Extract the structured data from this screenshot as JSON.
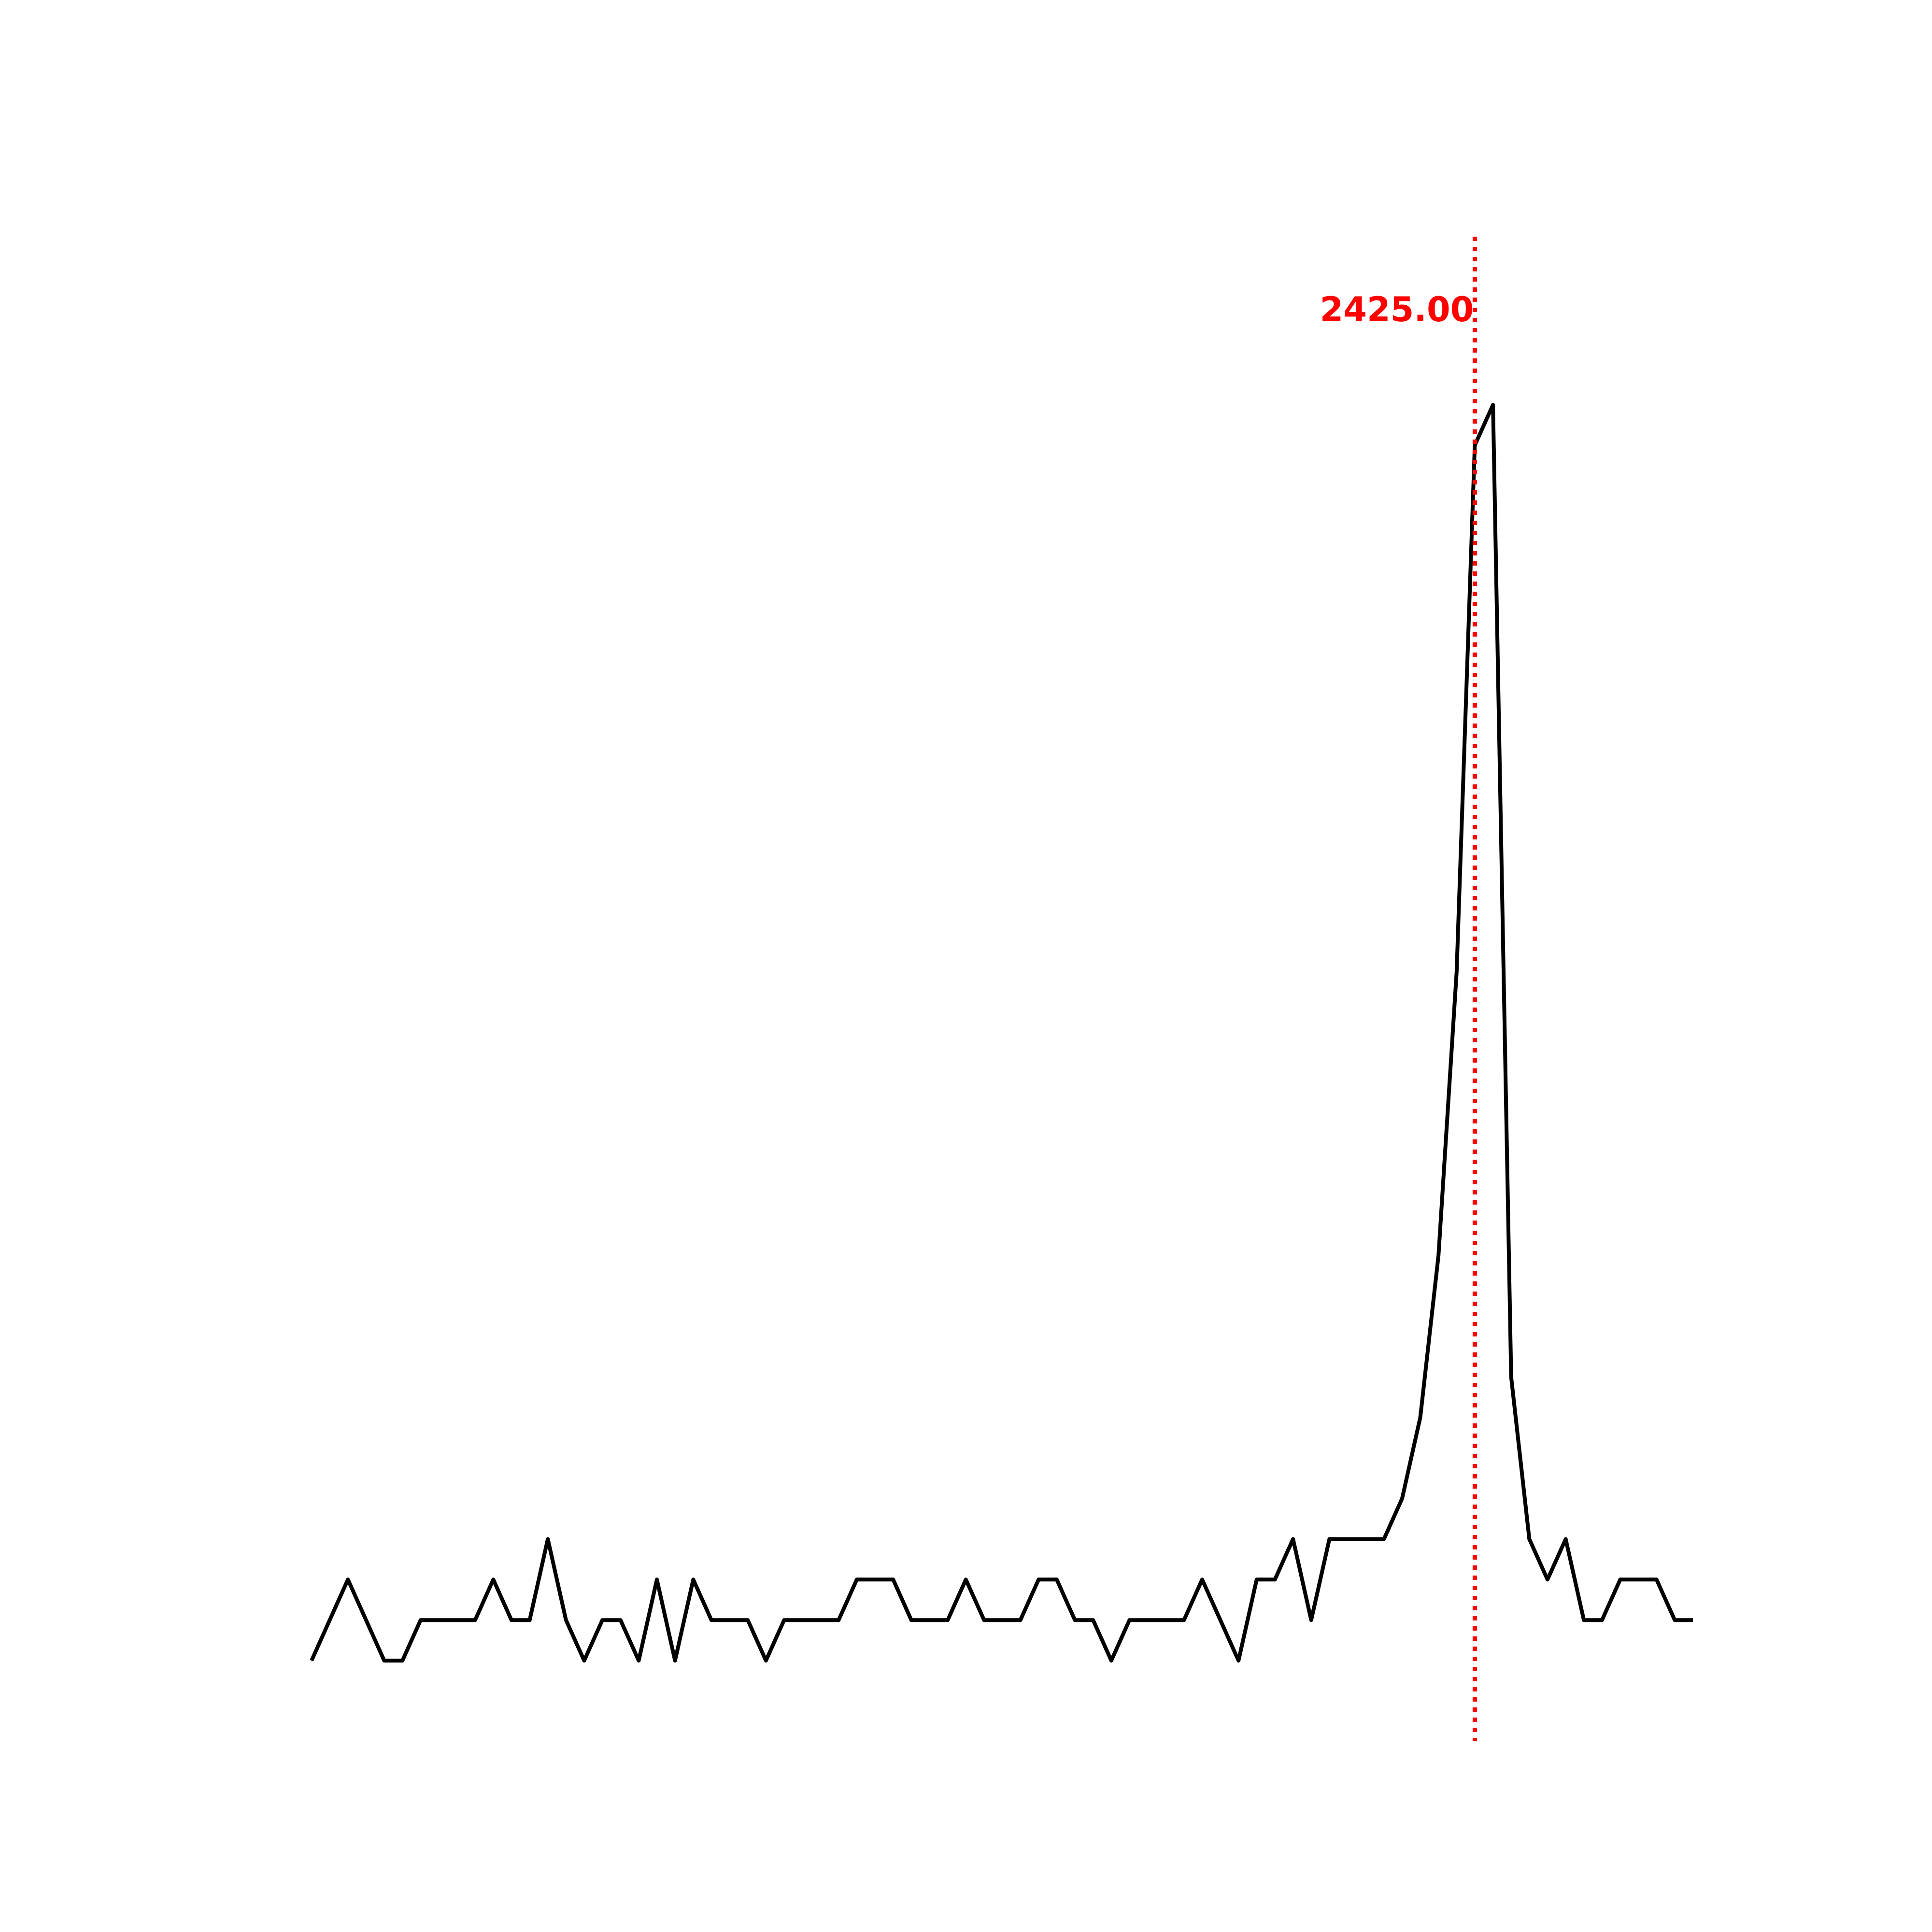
{
  "chart_data": {
    "type": "line",
    "title": "",
    "xlabel": "",
    "ylabel": "",
    "axes_visible": false,
    "grid": false,
    "xlim": [
      2361,
      2437
    ],
    "ylim": [
      -0.5,
      30.5
    ],
    "series": [
      {
        "color": "#000000",
        "x": [
          2361,
          2362,
          2363,
          2364,
          2365,
          2366,
          2367,
          2368,
          2369,
          2370,
          2371,
          2372,
          2373,
          2374,
          2375,
          2376,
          2377,
          2378,
          2379,
          2380,
          2381,
          2382,
          2383,
          2384,
          2385,
          2386,
          2387,
          2388,
          2389,
          2390,
          2391,
          2392,
          2393,
          2394,
          2395,
          2396,
          2397,
          2398,
          2399,
          2400,
          2401,
          2402,
          2403,
          2404,
          2405,
          2406,
          2407,
          2408,
          2409,
          2410,
          2411,
          2412,
          2413,
          2414,
          2415,
          2416,
          2417,
          2418,
          2419,
          2420,
          2421,
          2422,
          2423,
          2424,
          2425,
          2426,
          2427,
          2428,
          2429,
          2430,
          2431,
          2432,
          2433,
          2434,
          2435,
          2436,
          2437
        ],
        "y": [
          0,
          1,
          2,
          1,
          0,
          0,
          1,
          1,
          1,
          1,
          2,
          1,
          1,
          3,
          1,
          0,
          1,
          1,
          0,
          2,
          0,
          2,
          1,
          1,
          1,
          0,
          1,
          1,
          1,
          1,
          2,
          2,
          2,
          1,
          1,
          1,
          2,
          1,
          1,
          1,
          2,
          2,
          1,
          1,
          0,
          1,
          1,
          1,
          1,
          2,
          1,
          0,
          2,
          2,
          3,
          1,
          3,
          3,
          3,
          3,
          4,
          6,
          10,
          17,
          30,
          31,
          7,
          3,
          2,
          3,
          1,
          1,
          2,
          2,
          2,
          1,
          1
        ]
      }
    ],
    "markers": [
      {
        "x": 2425.0,
        "label": "2425.00",
        "color": "#ff0000",
        "style": "dotted"
      }
    ]
  }
}
